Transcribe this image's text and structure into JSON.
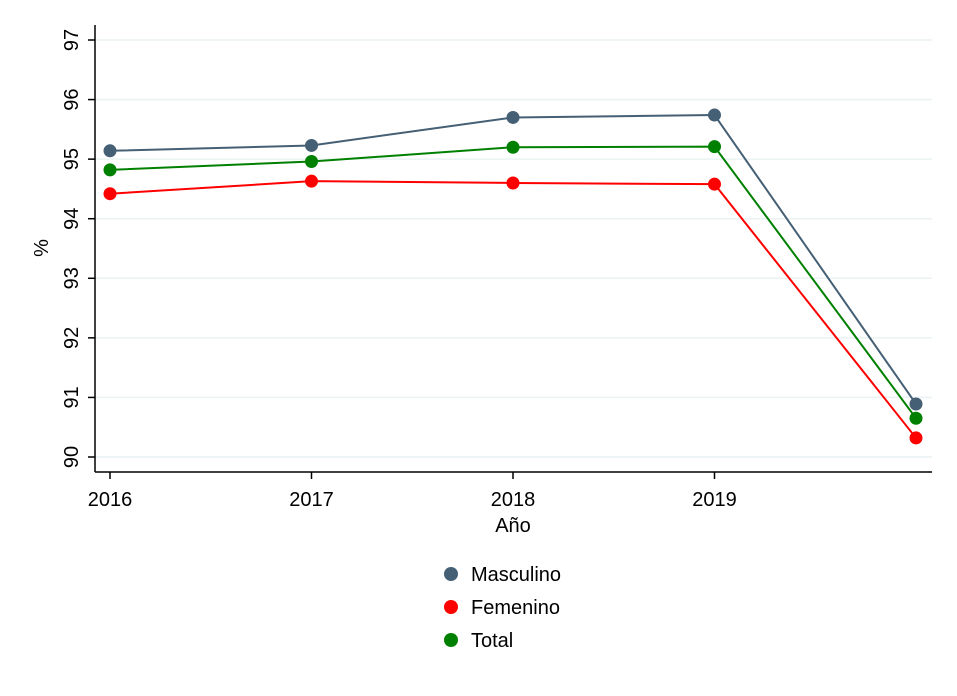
{
  "chart_data": {
    "type": "line",
    "xlabel": "Año",
    "ylabel": "%",
    "x": [
      2016,
      2017,
      2018,
      2019,
      2020
    ],
    "x_tick_labels": [
      "2016",
      "2017",
      "2018",
      "2019"
    ],
    "xlim": [
      2016,
      2020
    ],
    "ylim": [
      90,
      97
    ],
    "y_ticks": [
      90,
      91,
      92,
      93,
      94,
      95,
      96,
      97
    ],
    "grid": true,
    "legend_position": "bottom",
    "series": [
      {
        "name": "Masculino",
        "color": "#455f74",
        "values": [
          95.14,
          95.23,
          95.7,
          95.74,
          90.89
        ]
      },
      {
        "name": "Femenino",
        "color": "#ff0000",
        "values": [
          94.42,
          94.63,
          94.6,
          94.58,
          90.32
        ]
      },
      {
        "name": "Total",
        "color": "#008000",
        "values": [
          94.82,
          94.96,
          95.2,
          95.21,
          90.65
        ]
      }
    ]
  }
}
